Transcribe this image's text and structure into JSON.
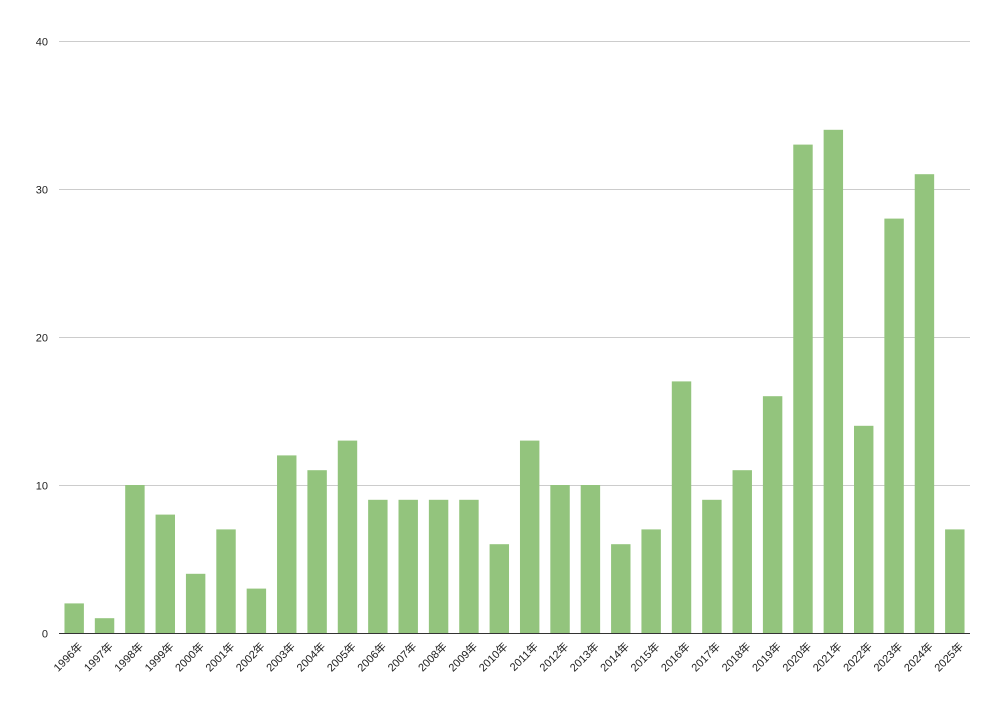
{
  "chart_data": {
    "type": "bar",
    "categories": [
      "1996年",
      "1997年",
      "1998年",
      "1999年",
      "2000年",
      "2001年",
      "2002年",
      "2003年",
      "2004年",
      "2005年",
      "2006年",
      "2007年",
      "2008年",
      "2009年",
      "2010年",
      "2011年",
      "2012年",
      "2013年",
      "2014年",
      "2015年",
      "2016年",
      "2017年",
      "2018年",
      "2019年",
      "2020年",
      "2021年",
      "2022年",
      "2023年",
      "2024年",
      "2025年"
    ],
    "values": [
      2,
      1,
      10,
      8,
      4,
      7,
      3,
      12,
      11,
      13,
      9,
      9,
      9,
      9,
      6,
      13,
      10,
      10,
      6,
      7,
      17,
      9,
      11,
      16,
      33,
      34,
      14,
      28,
      31,
      7
    ],
    "ylim": [
      0,
      40
    ],
    "yticks": [
      0,
      10,
      20,
      30,
      40
    ],
    "grid": true,
    "legend": "none",
    "title": "",
    "xlabel": "",
    "ylabel": "",
    "bar_color": "#93c47d",
    "grid_color": "#cccccc",
    "axis_color": "#333333"
  }
}
